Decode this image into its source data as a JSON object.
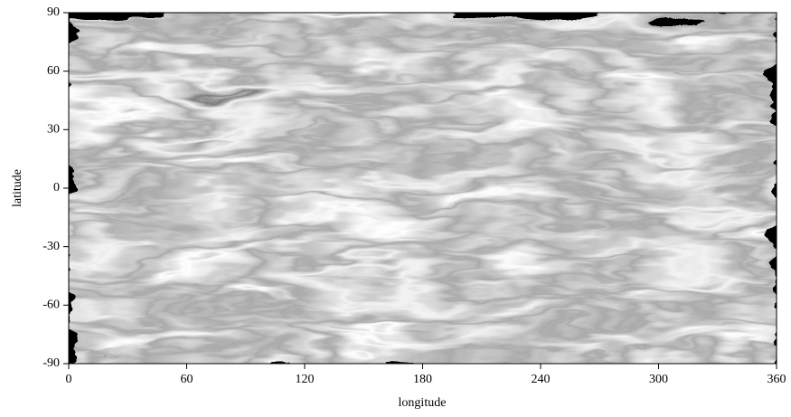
{
  "chart_data": {
    "type": "image",
    "xlabel": "longitude",
    "ylabel": "latitude",
    "xlim": [
      0,
      360
    ],
    "xticks": [
      0,
      60,
      120,
      180,
      240,
      300,
      360
    ],
    "ylim": [
      -90,
      90
    ],
    "yticks": [
      -90,
      -60,
      -30,
      0,
      30,
      60,
      90
    ]
  }
}
